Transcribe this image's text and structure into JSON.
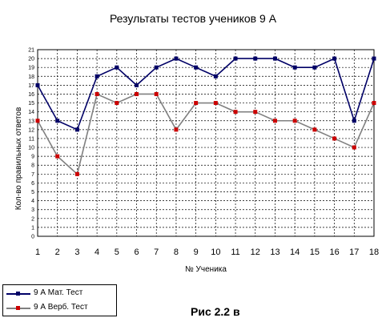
{
  "chart_data": {
    "type": "line",
    "title": "Результаты тестов учеников 9 А",
    "xlabel": "№ Ученика",
    "ylabel": "Кол-во правильных ответов",
    "categories": [
      "1",
      "2",
      "3",
      "4",
      "5",
      "6",
      "7",
      "8",
      "9",
      "10",
      "11",
      "12",
      "13",
      "14",
      "15",
      "16",
      "17",
      "18"
    ],
    "ylim": [
      0,
      21
    ],
    "yticks": [
      "0",
      "1",
      "2",
      "3",
      "4",
      "5",
      "6",
      "7",
      "8",
      "9",
      "10",
      "11",
      "12",
      "13",
      "14",
      "15",
      "16",
      "17",
      "18",
      "19",
      "20",
      "21"
    ],
    "grid": true,
    "legend_position": "bottom-left",
    "series": [
      {
        "name": "9 А Мат. Тест",
        "color": "#000066",
        "marker_color": "#000066",
        "values": [
          17,
          13,
          12,
          18,
          19,
          17,
          19,
          20,
          19,
          18,
          20,
          20,
          20,
          19,
          19,
          20,
          13,
          20
        ]
      },
      {
        "name": "9 А Верб. Тест",
        "color": "#808080",
        "marker_color": "#cc0000",
        "values": [
          13,
          9,
          7,
          16,
          15,
          16,
          16,
          12,
          15,
          15,
          14,
          14,
          13,
          13,
          12,
          11,
          10,
          15
        ]
      }
    ]
  },
  "caption": "Рис 2.2 в"
}
